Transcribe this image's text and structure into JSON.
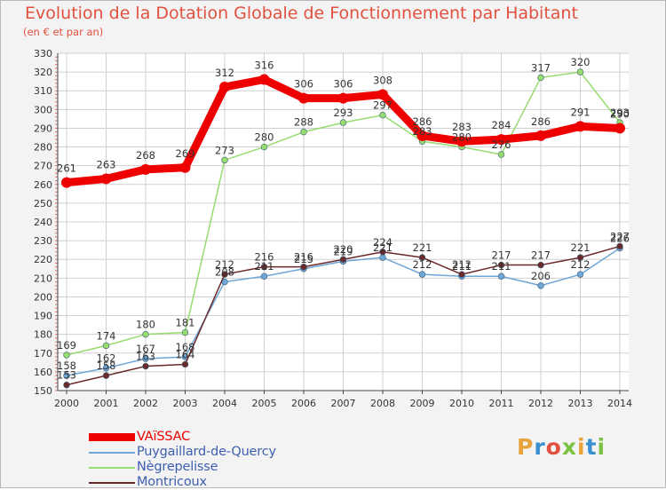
{
  "header": {
    "title": "Evolution de la Dotation Globale de Fonctionnement par Habitant",
    "subtitle": "(en € et par an)"
  },
  "logo": {
    "text": "Proxiti",
    "colors": [
      "#e8a43b",
      "#3a8fd0",
      "#e0513f",
      "#7cc242",
      "#e8a43b",
      "#3a8fd0",
      "#7cc242"
    ]
  },
  "chart_data": {
    "type": "line",
    "title": "Evolution de la Dotation Globale de Fonctionnement par Habitant",
    "subtitle": "(en € et par an)",
    "xlabel": "",
    "ylabel": "",
    "ylim": [
      150,
      330
    ],
    "ytick_step": 10,
    "grid": true,
    "legend_position": "bottom-left",
    "categories": [
      "2000",
      "2001",
      "2002",
      "2003",
      "2004",
      "2005",
      "2006",
      "2007",
      "2008",
      "2009",
      "2010",
      "2011",
      "2012",
      "2013",
      "2014"
    ],
    "series": [
      {
        "name": "VAïSSAC",
        "color": "#ee0000",
        "emphasis": true,
        "values": [
          261,
          263,
          268,
          269,
          312,
          316,
          306,
          306,
          308,
          286,
          283,
          284,
          286,
          291,
          290
        ],
        "labels": [
          "261",
          "263",
          "268",
          "269",
          "312",
          "316",
          "306",
          "306",
          "308",
          "286",
          "283",
          "284",
          "286",
          "291",
          "290"
        ]
      },
      {
        "name": "Puygaillard-de-Quercy",
        "color": "#6ea6d6",
        "emphasis": false,
        "values": [
          158,
          162,
          167,
          168,
          208,
          211,
          215,
          219,
          221,
          212,
          211,
          211,
          206,
          212,
          226
        ],
        "labels": [
          "158",
          "162",
          "167",
          "168",
          "208",
          "211",
          "215",
          "219",
          "221",
          "212",
          "211",
          "211",
          "206",
          "212",
          "226"
        ]
      },
      {
        "name": "Nègrepelisse",
        "color": "#96dc6e",
        "emphasis": false,
        "values": [
          169,
          174,
          180,
          181,
          273,
          280,
          288,
          293,
          297,
          283,
          280,
          276,
          317,
          320,
          293
        ],
        "labels": [
          "169",
          "174",
          "180",
          "181",
          "273",
          "280",
          "288",
          "293",
          "297",
          "283",
          "280",
          "276",
          "317",
          "320",
          "293"
        ]
      },
      {
        "name": "Montricoux",
        "color": "#6b2a2a",
        "emphasis": false,
        "values": [
          153,
          158,
          163,
          164,
          212,
          216,
          216,
          220,
          224,
          221,
          212,
          217,
          217,
          221,
          227
        ],
        "labels": [
          "153",
          "158",
          "163",
          "164",
          "212",
          "216",
          "216",
          "220",
          "224",
          "221",
          "212",
          "217",
          "217",
          "221",
          "227"
        ]
      }
    ]
  }
}
